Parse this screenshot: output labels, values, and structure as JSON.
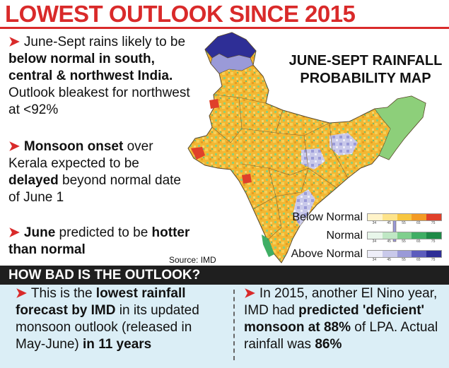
{
  "headline": "LOWEST OUTLOOK SINCE 2015",
  "bullets": [
    {
      "t1": "June-Sept rains likely to be ",
      "b1": "below normal in south, central & northwest India.",
      "t2": " Outlook bleakest for northwest at <92%"
    },
    {
      "b1": "Monsoon onset",
      "t1": " over Kerala expected to be ",
      "b2": "delayed",
      "t2": " beyond normal date of June 1"
    },
    {
      "b1": "June",
      "t1": " predicted to be ",
      "b2": "hotter than normal"
    }
  ],
  "map": {
    "title_line1": "JUNE-SEPT RAINFALL",
    "title_line2": "PROBABILITY MAP",
    "source": "Source: IMD",
    "legend": [
      {
        "label": "Below Normal",
        "colors": [
          "#fff3c9",
          "#fde38a",
          "#f7c640",
          "#f39a24",
          "#e0402a"
        ]
      },
      {
        "label": "Normal",
        "colors": [
          "#e8f6ea",
          "#bfe7c4",
          "#7fcf8d",
          "#3fae64",
          "#1e8a47"
        ]
      },
      {
        "label": "Above Normal",
        "colors": [
          "#eeeef8",
          "#c9c9ea",
          "#9a9ad8",
          "#5d5dbd",
          "#2e2e96"
        ]
      }
    ],
    "legend_ticks": [
      "34",
      "45",
      "55",
      "65",
      "75"
    ]
  },
  "section_header": "HOW BAD IS THE OUTLOOK?",
  "facts": [
    {
      "t1": "This is the ",
      "b1": "lowest rainfall forecast by IMD",
      "t2": " in its updated monsoon outlook (released in May-June) ",
      "b2": "in 11 years"
    },
    {
      "t1": "In 2015, another El Nino year, IMD had ",
      "b1": "predicted 'deficient' monsoon at 88%",
      "t2": " of LPA. Actual rainfall was ",
      "b2": "86%"
    }
  ],
  "colors": {
    "accent_red": "#d92a2a",
    "band_dark": "#1f1f1f",
    "panel_blue": "#dbeef6"
  }
}
